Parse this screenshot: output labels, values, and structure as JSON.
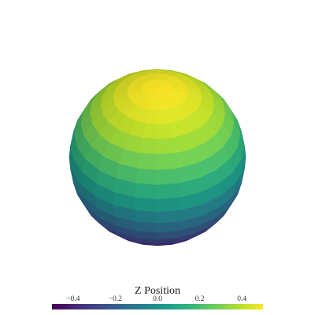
{
  "chart_data": {
    "type": "surface",
    "shape": "sphere",
    "radius": 0.5,
    "color_variable": "z",
    "colormap": "viridis",
    "colormap_stops": [
      "#440154",
      "#482878",
      "#3e4989",
      "#31688e",
      "#26828e",
      "#1f9e89",
      "#35b779",
      "#6ece58",
      "#b5de2b",
      "#fde725"
    ],
    "clim": [
      -0.5,
      0.5
    ],
    "resolution": {
      "latitude_bands": 18,
      "longitude_bands": 24
    },
    "view": {
      "elevation_deg": 38,
      "azimuth_deg": 0
    },
    "lighting": "flat",
    "colorbar": {
      "title": "Z Position",
      "orientation": "horizontal",
      "placement": "bottom",
      "ticks": [
        -0.4,
        -0.2,
        0.0,
        0.2,
        0.4
      ],
      "tick_labels": [
        "−0.4",
        "−0.2",
        "0.0",
        "0.2",
        "0.4"
      ]
    },
    "axes_visible": false,
    "grid": false
  }
}
